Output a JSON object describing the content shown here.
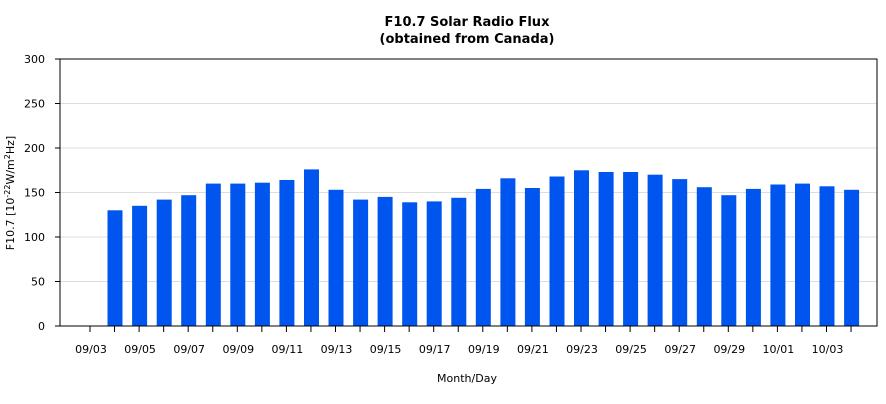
{
  "chart_data": {
    "type": "bar",
    "title": "F10.7 Solar Radio Flux",
    "subtitle": "(obtained from Canada)",
    "xlabel": "Month/Day",
    "ylabel": {
      "prefix": "F10.7 [10",
      "exp1": "-22",
      "mid": "W/m",
      "exp2": "2",
      "suffix": "Hz]"
    },
    "ylim": [
      0,
      300
    ],
    "yticks": [
      "0",
      "50",
      "100",
      "150",
      "200",
      "250",
      "300"
    ],
    "grid": true,
    "bar_color": "#0055ee",
    "categories": [
      "09/03",
      "09/04",
      "09/05",
      "09/06",
      "09/07",
      "09/08",
      "09/09",
      "09/10",
      "09/11",
      "09/12",
      "09/13",
      "09/14",
      "09/15",
      "09/16",
      "09/17",
      "09/18",
      "09/19",
      "09/20",
      "09/21",
      "09/22",
      "09/23",
      "09/24",
      "09/25",
      "09/26",
      "09/27",
      "09/28",
      "09/29",
      "09/30",
      "10/01",
      "10/02",
      "10/03",
      "10/04"
    ],
    "xtick_labels": [
      "09/03",
      "09/05",
      "09/07",
      "09/09",
      "09/11",
      "09/13",
      "09/15",
      "09/17",
      "09/19",
      "09/21",
      "09/23",
      "09/25",
      "09/27",
      "09/29",
      "10/01",
      "10/03"
    ],
    "values": [
      null,
      130,
      135,
      142,
      147,
      160,
      160,
      161,
      164,
      176,
      153,
      142,
      145,
      139,
      140,
      144,
      154,
      166,
      155,
      168,
      175,
      173,
      173,
      170,
      165,
      156,
      147,
      154,
      159,
      160,
      157,
      153
    ]
  }
}
